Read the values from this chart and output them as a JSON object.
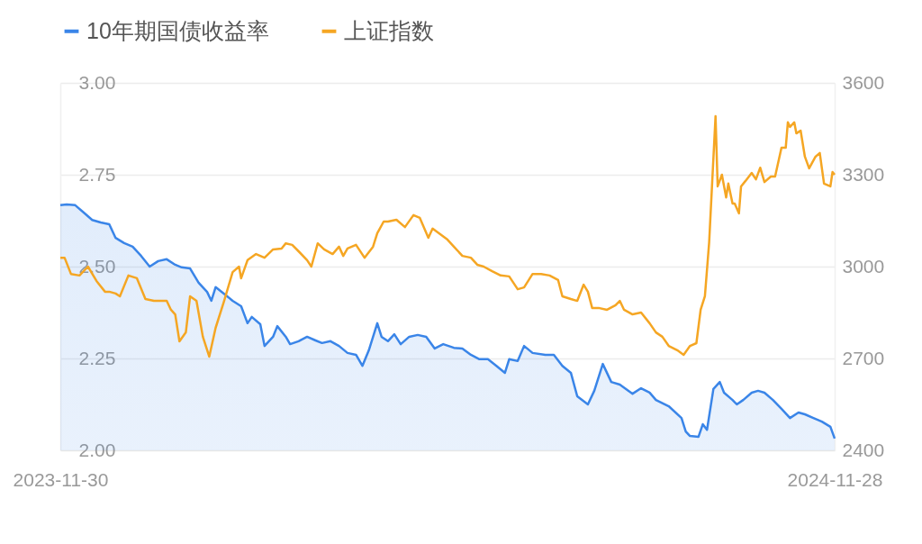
{
  "chart_data": {
    "type": "line",
    "series": [
      {
        "name": "10年期国债收益率",
        "type": "area",
        "color": "#3a85e8",
        "axis": "y",
        "x": [
          "2023-11-30",
          "2023-12-03",
          "2023-12-07",
          "2023-12-11",
          "2023-12-15",
          "2023-12-19",
          "2023-12-23",
          "2023-12-26",
          "2023-12-30",
          "2024-01-03",
          "2024-01-07",
          "2024-01-11",
          "2024-01-15",
          "2024-01-19",
          "2024-01-23",
          "2024-01-26",
          "2024-01-30",
          "2024-02-03",
          "2024-02-07",
          "2024-02-09",
          "2024-02-11",
          "2024-02-15",
          "2024-02-19",
          "2024-02-23",
          "2024-02-26",
          "2024-02-28",
          "2024-03-03",
          "2024-03-05",
          "2024-03-09",
          "2024-03-11",
          "2024-03-15",
          "2024-03-17",
          "2024-03-21",
          "2024-03-25",
          "2024-03-29",
          "2024-04-01",
          "2024-04-05",
          "2024-04-09",
          "2024-04-13",
          "2024-04-17",
          "2024-04-20",
          "2024-04-23",
          "2024-04-27",
          "2024-04-29",
          "2024-05-02",
          "2024-05-05",
          "2024-05-08",
          "2024-05-12",
          "2024-05-16",
          "2024-05-20",
          "2024-05-24",
          "2024-05-28",
          "2024-06-02",
          "2024-06-06",
          "2024-06-10",
          "2024-06-14",
          "2024-06-18",
          "2024-06-22",
          "2024-06-26",
          "2024-06-28",
          "2024-07-02",
          "2024-07-05",
          "2024-07-09",
          "2024-07-15",
          "2024-07-19",
          "2024-07-23",
          "2024-07-27",
          "2024-07-30",
          "2024-08-04",
          "2024-08-07",
          "2024-08-11",
          "2024-08-15",
          "2024-08-19",
          "2024-08-25",
          "2024-08-29",
          "2024-09-02",
          "2024-09-05",
          "2024-09-11",
          "2024-09-17",
          "2024-09-19",
          "2024-09-21",
          "2024-09-25",
          "2024-09-27",
          "2024-09-29",
          "2024-10-02",
          "2024-10-05",
          "2024-10-07",
          "2024-10-11",
          "2024-10-13",
          "2024-10-16",
          "2024-10-20",
          "2024-10-23",
          "2024-10-26",
          "2024-10-30",
          "2024-11-03",
          "2024-11-07",
          "2024-11-11",
          "2024-11-14",
          "2024-11-18",
          "2024-11-22",
          "2024-11-26",
          "2024-11-28"
        ],
        "values": [
          2.667,
          2.669,
          2.667,
          2.647,
          2.627,
          2.62,
          2.615,
          2.578,
          2.564,
          2.554,
          2.529,
          2.5,
          2.515,
          2.52,
          2.505,
          2.498,
          2.495,
          2.456,
          2.431,
          2.407,
          2.444,
          2.426,
          2.407,
          2.392,
          2.346,
          2.363,
          2.343,
          2.284,
          2.309,
          2.338,
          2.309,
          2.289,
          2.297,
          2.309,
          2.299,
          2.292,
          2.297,
          2.284,
          2.265,
          2.26,
          2.23,
          2.272,
          2.346,
          2.309,
          2.297,
          2.316,
          2.289,
          2.309,
          2.314,
          2.309,
          2.277,
          2.289,
          2.279,
          2.277,
          2.26,
          2.248,
          2.248,
          2.23,
          2.211,
          2.248,
          2.243,
          2.284,
          2.265,
          2.26,
          2.26,
          2.23,
          2.211,
          2.147,
          2.125,
          2.162,
          2.235,
          2.186,
          2.179,
          2.154,
          2.169,
          2.157,
          2.137,
          2.12,
          2.088,
          2.051,
          2.039,
          2.037,
          2.071,
          2.056,
          2.167,
          2.186,
          2.157,
          2.137,
          2.125,
          2.137,
          2.157,
          2.162,
          2.157,
          2.137,
          2.113,
          2.088,
          2.103,
          2.098,
          2.088,
          2.078,
          2.064,
          2.032
        ]
      },
      {
        "name": "上证指数",
        "type": "line",
        "color": "#f5a623",
        "axis": "y2",
        "x": [
          "2023-11-30",
          "2023-12-02",
          "2023-12-05",
          "2023-12-09",
          "2023-12-13",
          "2023-12-17",
          "2023-12-21",
          "2023-12-23",
          "2023-12-26",
          "2023-12-28",
          "2024-01-01",
          "2024-01-05",
          "2024-01-09",
          "2024-01-13",
          "2024-01-19",
          "2024-01-21",
          "2024-01-23",
          "2024-01-25",
          "2024-01-28",
          "2024-01-30",
          "2024-02-02",
          "2024-02-05",
          "2024-02-08",
          "2024-02-11",
          "2024-02-15",
          "2024-02-19",
          "2024-02-22",
          "2024-02-23",
          "2024-02-26",
          "2024-03-01",
          "2024-03-05",
          "2024-03-09",
          "2024-03-13",
          "2024-03-15",
          "2024-03-18",
          "2024-03-21",
          "2024-03-25",
          "2024-03-27",
          "2024-03-30",
          "2024-04-02",
          "2024-04-06",
          "2024-04-09",
          "2024-04-11",
          "2024-04-13",
          "2024-04-17",
          "2024-04-21",
          "2024-04-25",
          "2024-04-27",
          "2024-04-30",
          "2024-05-02",
          "2024-05-06",
          "2024-05-10",
          "2024-05-14",
          "2024-05-17",
          "2024-05-21",
          "2024-05-23",
          "2024-05-26",
          "2024-05-30",
          "2024-06-02",
          "2024-06-06",
          "2024-06-10",
          "2024-06-13",
          "2024-06-16",
          "2024-06-20",
          "2024-06-24",
          "2024-06-28",
          "2024-07-02",
          "2024-07-05",
          "2024-07-09",
          "2024-07-13",
          "2024-07-17",
          "2024-07-21",
          "2024-07-23",
          "2024-07-27",
          "2024-07-30",
          "2024-08-02",
          "2024-08-04",
          "2024-08-06",
          "2024-08-09",
          "2024-08-13",
          "2024-08-17",
          "2024-08-19",
          "2024-08-21",
          "2024-08-25",
          "2024-08-29",
          "2024-09-02",
          "2024-09-05",
          "2024-09-08",
          "2024-09-11",
          "2024-09-15",
          "2024-09-18",
          "2024-09-21",
          "2024-09-24",
          "2024-09-26",
          "2024-09-28",
          "2024-09-30",
          "2024-10-03",
          "2024-10-04",
          "2024-10-06",
          "2024-10-08",
          "2024-10-09",
          "2024-10-11",
          "2024-10-12",
          "2024-10-14",
          "2024-10-15",
          "2024-10-17",
          "2024-10-20",
          "2024-10-22",
          "2024-10-24",
          "2024-10-26",
          "2024-10-29",
          "2024-10-31",
          "2024-11-03",
          "2024-11-05",
          "2024-11-06",
          "2024-11-07",
          "2024-11-09",
          "2024-11-10",
          "2024-11-12",
          "2024-11-14",
          "2024-11-16",
          "2024-11-19",
          "2024-11-21",
          "2024-11-23",
          "2024-11-26",
          "2024-11-27",
          "2024-11-28"
        ],
        "values": [
          3029,
          3029,
          2976,
          2971,
          3000,
          2953,
          2918,
          2918,
          2912,
          2903,
          2971,
          2962,
          2894,
          2888,
          2888,
          2859,
          2844,
          2756,
          2785,
          2903,
          2888,
          2771,
          2706,
          2800,
          2888,
          2982,
          3000,
          2962,
          3021,
          3041,
          3029,
          3056,
          3059,
          3076,
          3071,
          3050,
          3021,
          3000,
          3076,
          3056,
          3041,
          3065,
          3035,
          3059,
          3071,
          3029,
          3065,
          3109,
          3147,
          3147,
          3153,
          3129,
          3168,
          3159,
          3094,
          3124,
          3109,
          3088,
          3065,
          3035,
          3029,
          3006,
          3000,
          2985,
          2971,
          2968,
          2926,
          2932,
          2976,
          2976,
          2971,
          2956,
          2903,
          2894,
          2888,
          2941,
          2918,
          2865,
          2865,
          2859,
          2874,
          2888,
          2859,
          2844,
          2850,
          2815,
          2785,
          2771,
          2741,
          2727,
          2712,
          2741,
          2750,
          2859,
          2903,
          3079,
          3491,
          3262,
          3300,
          3226,
          3271,
          3206,
          3206,
          3174,
          3262,
          3279,
          3306,
          3285,
          3323,
          3276,
          3294,
          3294,
          3388,
          3388,
          3471,
          3456,
          3471,
          3435,
          3444,
          3359,
          3321,
          3359,
          3371,
          3271,
          3262,
          3309,
          3300
        ]
      }
    ],
    "xlim": [
      "2023-11-30",
      "2024-11-28"
    ],
    "xticks": [
      "2023-11-30",
      "2024-11-28"
    ],
    "ylim": [
      2,
      3
    ],
    "yticks": [
      {
        "value": 2,
        "label": "2.00"
      },
      2.25,
      {
        "value": 2.5,
        "label": "2.50"
      },
      2.75,
      {
        "value": 3,
        "label": "3.00"
      }
    ],
    "y2lim": [
      2400,
      3600
    ],
    "y2ticks": [
      2400,
      2700,
      3000,
      3300,
      3600
    ],
    "grid": "y",
    "legend": "top left"
  }
}
